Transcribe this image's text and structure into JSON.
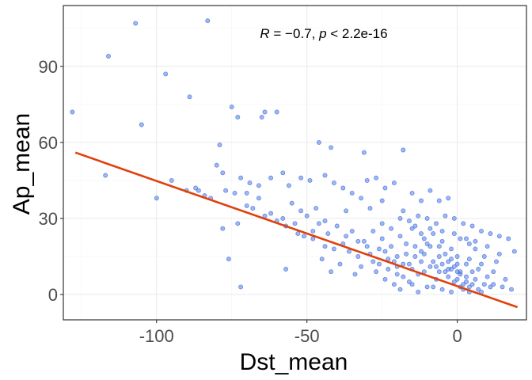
{
  "chart_data": {
    "type": "scatter",
    "xlabel": "Dst_mean",
    "ylabel": "Ap_mean",
    "xlim": [
      -131,
      23
    ],
    "ylim": [
      -10,
      114
    ],
    "xticks": [
      -100,
      -50,
      0
    ],
    "yticks": [
      0,
      30,
      60,
      90
    ],
    "x_tick_labels": [
      "-100",
      "-50",
      "0"
    ],
    "y_tick_labels": [
      "0",
      "30",
      "60",
      "90"
    ],
    "grid": true,
    "annotation": {
      "r_label": "R",
      "r_text": " = −0.7, ",
      "p_label": "p",
      "p_text": " < 2.2e-16"
    },
    "point_color": "#4C7BF0",
    "line_color": "#E0400C",
    "series": [
      {
        "kind": "points",
        "points": [
          [
            -128,
            72
          ],
          [
            -116,
            94
          ],
          [
            -107,
            107
          ],
          [
            -105,
            67
          ],
          [
            -97,
            87
          ],
          [
            -89,
            78
          ],
          [
            -83,
            108
          ],
          [
            -79,
            59
          ],
          [
            -75,
            74
          ],
          [
            -73,
            70
          ],
          [
            -65,
            70
          ],
          [
            -64,
            72
          ],
          [
            -60,
            72
          ],
          [
            -46,
            60
          ],
          [
            -42,
            58
          ],
          [
            -31,
            56
          ],
          [
            -18,
            57
          ],
          [
            -117,
            47
          ],
          [
            -100,
            38
          ],
          [
            -87,
            42
          ],
          [
            -84,
            39
          ],
          [
            -80,
            51
          ],
          [
            -78,
            48
          ],
          [
            -77,
            41
          ],
          [
            -74,
            40
          ],
          [
            -72,
            46
          ],
          [
            -69,
            44
          ],
          [
            -66,
            43
          ],
          [
            -62,
            46
          ],
          [
            -58,
            48
          ],
          [
            -56,
            43
          ],
          [
            -52,
            46
          ],
          [
            -49,
            45
          ],
          [
            -44,
            47
          ],
          [
            -41,
            44
          ],
          [
            -38,
            42
          ],
          [
            -35,
            40
          ],
          [
            -32,
            38
          ],
          [
            -30,
            45
          ],
          [
            -27,
            46
          ],
          [
            -24,
            42
          ],
          [
            -21,
            44
          ],
          [
            -15,
            40
          ],
          [
            -12,
            37
          ],
          [
            -9,
            41
          ],
          [
            -6,
            37
          ],
          [
            -3,
            38
          ],
          [
            -70,
            35
          ],
          [
            -68,
            34
          ],
          [
            -64,
            31
          ],
          [
            -60,
            29
          ],
          [
            -57,
            27
          ],
          [
            -55,
            36
          ],
          [
            -52,
            33
          ],
          [
            -50,
            31
          ],
          [
            -47,
            34
          ],
          [
            -73,
            28
          ],
          [
            -78,
            26
          ],
          [
            -76,
            14
          ],
          [
            -72,
            3
          ],
          [
            -57,
            10
          ],
          [
            -53,
            24
          ],
          [
            -48,
            22
          ],
          [
            -44,
            29
          ],
          [
            -40,
            27
          ],
          [
            -37,
            33
          ],
          [
            -36,
            17
          ],
          [
            -33,
            15
          ],
          [
            -29,
            34
          ],
          [
            -25,
            37
          ],
          [
            -22,
            26
          ],
          [
            -18,
            33
          ],
          [
            -16,
            29
          ],
          [
            -13,
            31
          ],
          [
            -10,
            30
          ],
          [
            -7,
            28
          ],
          [
            -4,
            31
          ],
          [
            -1,
            30
          ],
          [
            2,
            28
          ],
          [
            5,
            27
          ],
          [
            8,
            25
          ],
          [
            11,
            24
          ],
          [
            14,
            23
          ],
          [
            17,
            22
          ],
          [
            19,
            17
          ],
          [
            13,
            13
          ],
          [
            9,
            15
          ],
          [
            6,
            18
          ],
          [
            4,
            20
          ],
          [
            1,
            22
          ],
          [
            -45,
            14
          ],
          [
            -42,
            9
          ],
          [
            -39,
            12
          ],
          [
            -34,
            8
          ],
          [
            -31,
            21
          ],
          [
            -28,
            25
          ],
          [
            -26,
            18
          ],
          [
            -23,
            14
          ],
          [
            -20,
            11
          ],
          [
            -17,
            16
          ],
          [
            -14,
            19
          ],
          [
            -11,
            22
          ],
          [
            -8,
            24
          ],
          [
            -5,
            21
          ],
          [
            -2,
            18
          ],
          [
            0,
            15
          ],
          [
            3,
            12
          ],
          [
            7,
            10
          ],
          [
            10,
            7
          ],
          [
            12,
            4
          ],
          [
            15,
            3
          ],
          [
            18,
            2
          ],
          [
            -46,
            28
          ],
          [
            -43,
            24
          ],
          [
            -38,
            20
          ],
          [
            -35,
            25
          ],
          [
            -32,
            11
          ],
          [
            -27,
            9
          ],
          [
            -24,
            6
          ],
          [
            -21,
            4
          ],
          [
            -19,
            2
          ],
          [
            -16,
            5
          ],
          [
            -13,
            8
          ],
          [
            -10,
            3
          ],
          [
            -7,
            6
          ],
          [
            -4,
            9
          ],
          [
            -1,
            5
          ],
          [
            2,
            2
          ],
          [
            5,
            4
          ],
          [
            8,
            1
          ],
          [
            -30,
            19
          ],
          [
            -28,
            13
          ],
          [
            -25,
            22
          ],
          [
            -22,
            19
          ],
          [
            -19,
            23
          ],
          [
            -15,
            26
          ],
          [
            -12,
            24
          ],
          [
            -9,
            19
          ],
          [
            -6,
            15
          ],
          [
            -3,
            13
          ],
          [
            -1,
            11
          ],
          [
            1,
            9
          ],
          [
            3,
            7
          ],
          [
            6,
            6
          ],
          [
            9,
            4
          ],
          [
            11,
            3
          ],
          [
            -26,
            12
          ],
          [
            -23,
            10
          ],
          [
            -20,
            8
          ],
          [
            -18,
            12
          ],
          [
            -15,
            10
          ],
          [
            -12,
            13
          ],
          [
            -9,
            11
          ],
          [
            -6,
            9
          ],
          [
            -3,
            7
          ],
          [
            0,
            6
          ],
          [
            2,
            4
          ],
          [
            4,
            3
          ],
          [
            7,
            2
          ],
          [
            -17,
            20
          ],
          [
            -14,
            15
          ],
          [
            -11,
            16
          ],
          [
            -8,
            13
          ],
          [
            -5,
            12
          ],
          [
            -2,
            10
          ],
          [
            1,
            8
          ],
          [
            3,
            5
          ],
          [
            5,
            9
          ],
          [
            -20,
            15
          ],
          [
            -24,
            17
          ],
          [
            -29,
            16
          ],
          [
            -33,
            21
          ],
          [
            -37,
            23
          ],
          [
            -41,
            18
          ],
          [
            -44,
            19
          ],
          [
            -48,
            25
          ],
          [
            -51,
            23
          ],
          [
            -54,
            28
          ],
          [
            -58,
            30
          ],
          [
            -62,
            32
          ],
          [
            -66,
            38
          ],
          [
            -70,
            40
          ],
          [
            -82,
            38
          ],
          [
            -86,
            41
          ],
          [
            -90,
            41
          ],
          [
            -95,
            45
          ],
          [
            -10,
            20
          ],
          [
            -12,
            17
          ],
          [
            -6,
            19
          ],
          [
            -4,
            16
          ],
          [
            -2,
            14
          ],
          [
            0,
            12
          ],
          [
            4,
            14
          ],
          [
            8,
            12
          ],
          [
            12,
            9
          ],
          [
            16,
            6
          ],
          [
            -18,
            7
          ],
          [
            -15,
            4
          ],
          [
            -13,
            1
          ],
          [
            -8,
            3
          ],
          [
            -5,
            2
          ],
          [
            -2,
            1
          ],
          [
            1,
            3
          ],
          [
            4,
            1
          ],
          [
            -21,
            13
          ],
          [
            -16,
            12
          ],
          [
            -11,
            9
          ],
          [
            -7,
            11
          ],
          [
            -3,
            10
          ],
          [
            0,
            9
          ],
          [
            -25,
            28
          ],
          [
            -19,
            30
          ],
          [
            -14,
            27
          ],
          [
            -9,
            26
          ],
          [
            -5,
            25
          ],
          [
            -1,
            24
          ],
          [
            3,
            22
          ],
          [
            6,
            21
          ],
          [
            10,
            19
          ],
          [
            14,
            16
          ]
        ]
      },
      {
        "kind": "fit",
        "points": [
          [
            -127,
            56
          ],
          [
            20,
            -5
          ]
        ]
      }
    ]
  }
}
